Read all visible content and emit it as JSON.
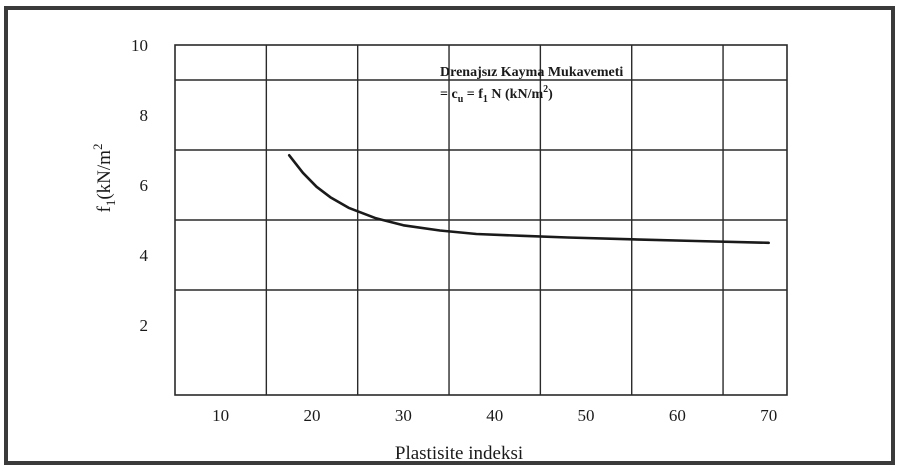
{
  "chart_data": {
    "type": "line",
    "title": "",
    "xlabel": "Plastisite indeksi",
    "ylabel_main": "f",
    "ylabel_sub": "1",
    "ylabel_rest": "(kN/m",
    "ylabel_sup": "2",
    "annotation": {
      "line1": "Drenajsız Kayma Mukavemeti",
      "line2_a": "= c",
      "line2_sub_u": "u",
      "line2_b": " = f",
      "line2_sub_1": "1",
      "line2_c": " N (kN/m",
      "line2_sup": "2",
      "line2_d": ")"
    },
    "xlim": [
      5,
      72
    ],
    "ylim": [
      0,
      10
    ],
    "x_ticks": [
      "10",
      "20",
      "30",
      "40",
      "50",
      "60",
      "70"
    ],
    "x_tick_values": [
      10,
      20,
      30,
      40,
      50,
      60,
      70
    ],
    "y_ticks": [
      "10",
      "8",
      "6",
      "4",
      "2"
    ],
    "y_tick_values": [
      10,
      8,
      6,
      4,
      2
    ],
    "grid": true,
    "series": [
      {
        "x": [
          17.5,
          19,
          20.5,
          22,
          24,
          27,
          30,
          34,
          38,
          43,
          48,
          55,
          62,
          70
        ],
        "y": [
          6.85,
          6.35,
          5.95,
          5.65,
          5.35,
          5.05,
          4.85,
          4.7,
          4.6,
          4.55,
          4.5,
          4.45,
          4.4,
          4.35
        ]
      }
    ],
    "colors": {
      "line": "#1a1a1a",
      "grid": "#2a2a2a",
      "frame": "#3a3a3a"
    }
  }
}
